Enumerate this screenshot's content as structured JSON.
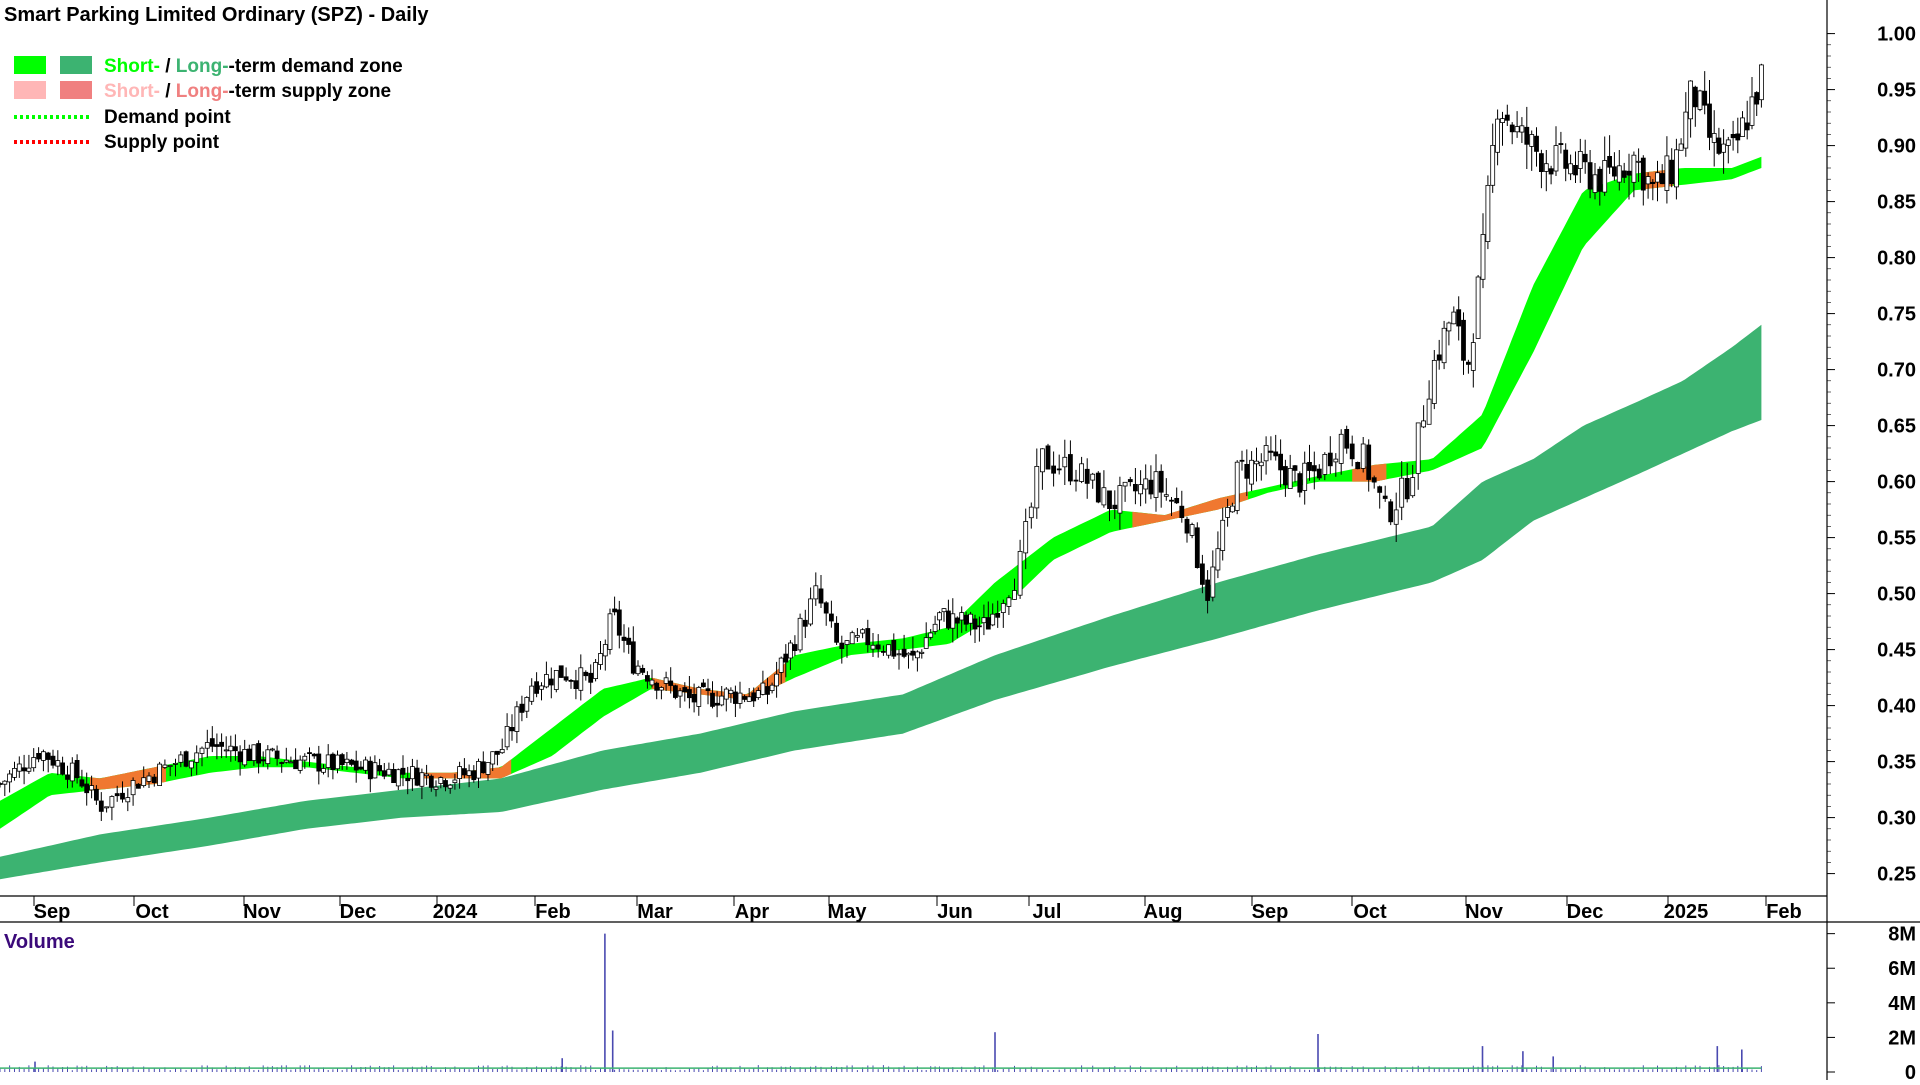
{
  "chart_data": {
    "type": "candlestick",
    "title": "Smart Parking Limited Ordinary (SPZ) - Daily",
    "price_axis": {
      "ticks": [
        "1.00",
        "0.95",
        "0.90",
        "0.85",
        "0.80",
        "0.75",
        "0.70",
        "0.65",
        "0.60",
        "0.55",
        "0.50",
        "0.45",
        "0.40",
        "0.35",
        "0.30",
        "0.25"
      ],
      "ylim": [
        0.23,
        1.03
      ]
    },
    "x_axis": {
      "labels": [
        "Sep",
        "Oct",
        "Nov",
        "Dec",
        "2024",
        "Feb",
        "Mar",
        "Apr",
        "May",
        "Jun",
        "Jul",
        "Aug",
        "Sep",
        "Oct",
        "Nov",
        "Dec",
        "2025",
        "Feb"
      ]
    },
    "legend": {
      "items": [
        {
          "short": "Short-",
          "sep": " / ",
          "long": "Long-",
          "rest": "-term demand zone",
          "short_color": "#00ff00",
          "long_color": "#3cb371"
        },
        {
          "short": "Short-",
          "sep": " / ",
          "long": "Long-",
          "rest": "-term supply zone",
          "short_color": "#ffb6b6",
          "long_color": "#f08080"
        },
        {
          "label": "Demand point",
          "color": "#00ff00"
        },
        {
          "label": "Supply point",
          "color": "#ff0000"
        }
      ]
    },
    "short_zone": {
      "dates": [
        0.0,
        0.5,
        1.0,
        1.5,
        2.0,
        2.5,
        3.0,
        3.5,
        4.0,
        4.5,
        5.0,
        5.5,
        6.0,
        6.5,
        7.0,
        7.5,
        8.0,
        8.5,
        9.0,
        9.5,
        10.0,
        10.5,
        11.0,
        11.5,
        12.0,
        12.5,
        13.0,
        13.5,
        14.0,
        14.5,
        15.0,
        15.5,
        16.0,
        16.5,
        17.0,
        17.3
      ],
      "upper": [
        0.315,
        0.34,
        0.335,
        0.345,
        0.355,
        0.355,
        0.35,
        0.345,
        0.34,
        0.34,
        0.345,
        0.38,
        0.415,
        0.425,
        0.415,
        0.41,
        0.445,
        0.455,
        0.46,
        0.47,
        0.51,
        0.55,
        0.575,
        0.57,
        0.585,
        0.595,
        0.605,
        0.615,
        0.62,
        0.66,
        0.775,
        0.86,
        0.875,
        0.88,
        0.88,
        0.89
      ],
      "lower": [
        0.29,
        0.32,
        0.325,
        0.33,
        0.34,
        0.345,
        0.345,
        0.34,
        0.335,
        0.335,
        0.335,
        0.355,
        0.39,
        0.415,
        0.41,
        0.405,
        0.425,
        0.445,
        0.45,
        0.455,
        0.48,
        0.53,
        0.555,
        0.565,
        0.575,
        0.59,
        0.6,
        0.6,
        0.61,
        0.63,
        0.715,
        0.81,
        0.86,
        0.865,
        0.87,
        0.88
      ],
      "supply_periods": [
        [
          0.9,
          1.6
        ],
        [
          4.1,
          5.1
        ],
        [
          6.5,
          7.9
        ],
        [
          11.2,
          12.3
        ],
        [
          13.3,
          13.6
        ],
        [
          16.1,
          16.4
        ]
      ]
    },
    "long_zone": {
      "dates": [
        0.0,
        1.0,
        2.0,
        3.0,
        4.0,
        5.0,
        6.0,
        7.0,
        8.0,
        9.0,
        10.0,
        11.0,
        12.0,
        13.0,
        14.0,
        14.5,
        15.0,
        15.5,
        16.0,
        16.5,
        17.0,
        17.3
      ],
      "upper": [
        0.265,
        0.285,
        0.3,
        0.315,
        0.325,
        0.335,
        0.36,
        0.375,
        0.395,
        0.41,
        0.445,
        0.48,
        0.51,
        0.535,
        0.56,
        0.6,
        0.62,
        0.65,
        0.67,
        0.69,
        0.72,
        0.74
      ],
      "lower": [
        0.245,
        0.26,
        0.275,
        0.29,
        0.3,
        0.305,
        0.325,
        0.34,
        0.36,
        0.375,
        0.405,
        0.435,
        0.46,
        0.485,
        0.51,
        0.53,
        0.565,
        0.585,
        0.605,
        0.625,
        0.645,
        0.655
      ]
    },
    "price_path": {
      "dates": [
        0.0,
        0.4,
        0.8,
        1.0,
        1.3,
        1.7,
        2.0,
        2.5,
        3.0,
        3.5,
        4.0,
        4.4,
        4.7,
        5.0,
        5.3,
        5.6,
        5.9,
        6.1,
        6.3,
        6.6,
        6.9,
        7.3,
        7.7,
        8.0,
        8.2,
        8.4,
        8.7,
        9.1,
        9.4,
        9.6,
        9.9,
        10.2,
        10.4,
        10.7,
        11.0,
        11.4,
        11.7,
        11.9,
        12.2,
        12.5,
        12.8,
        13.0,
        13.2,
        13.4,
        13.6,
        13.8,
        14.0,
        14.2,
        14.35,
        14.5,
        14.65,
        14.85,
        15.1,
        15.4,
        15.7,
        16.0,
        16.2,
        16.4,
        16.6,
        16.8,
        17.0,
        17.3
      ],
      "closes": [
        0.33,
        0.36,
        0.335,
        0.31,
        0.33,
        0.35,
        0.365,
        0.355,
        0.35,
        0.345,
        0.34,
        0.335,
        0.34,
        0.36,
        0.42,
        0.43,
        0.42,
        0.48,
        0.44,
        0.42,
        0.405,
        0.41,
        0.41,
        0.46,
        0.5,
        0.45,
        0.46,
        0.44,
        0.48,
        0.475,
        0.47,
        0.52,
        0.62,
        0.61,
        0.58,
        0.6,
        0.57,
        0.5,
        0.61,
        0.62,
        0.6,
        0.61,
        0.64,
        0.62,
        0.57,
        0.6,
        0.7,
        0.75,
        0.7,
        0.8,
        0.94,
        0.91,
        0.89,
        0.88,
        0.87,
        0.89,
        0.86,
        0.88,
        0.95,
        0.9,
        0.89,
        0.96
      ]
    },
    "volume_panel": {
      "label": "Volume",
      "ticks": [
        "8M",
        "6M",
        "4M",
        "2M",
        "0"
      ],
      "ylim": [
        0,
        8.5
      ],
      "baseline_m": 0.25,
      "spikes": [
        {
          "date": 0.35,
          "value_m": 0.6
        },
        {
          "date": 5.6,
          "value_m": 0.8
        },
        {
          "date": 6.02,
          "value_m": 8.0
        },
        {
          "date": 6.1,
          "value_m": 2.4
        },
        {
          "date": 10.0,
          "value_m": 2.3
        },
        {
          "date": 13.0,
          "value_m": 2.2
        },
        {
          "date": 14.5,
          "value_m": 1.5
        },
        {
          "date": 14.9,
          "value_m": 1.2
        },
        {
          "date": 15.2,
          "value_m": 0.9
        },
        {
          "date": 16.85,
          "value_m": 1.5
        },
        {
          "date": 17.1,
          "value_m": 1.3
        }
      ]
    }
  }
}
